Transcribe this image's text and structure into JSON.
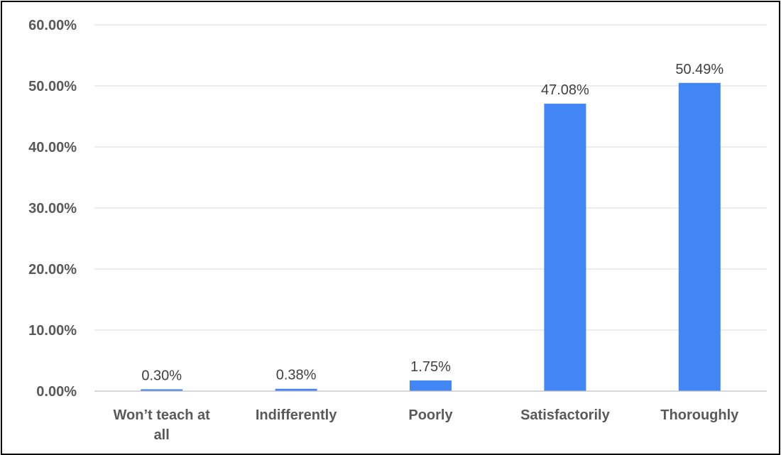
{
  "chart_data": {
    "type": "bar",
    "categories": [
      [
        "Won’t teach at",
        "all"
      ],
      [
        "Indifferently"
      ],
      [
        "Poorly"
      ],
      [
        "Satisfactorily"
      ],
      [
        "Thoroughly"
      ]
    ],
    "values": [
      0.3,
      0.38,
      1.75,
      47.08,
      50.49
    ],
    "data_labels": [
      "0.30%",
      "0.38%",
      "1.75%",
      "47.08%",
      "50.49%"
    ],
    "ylim": [
      0,
      60
    ],
    "yticks": [
      0,
      10,
      20,
      30,
      40,
      50,
      60
    ],
    "ytick_labels": [
      "0.00%",
      "10.00%",
      "20.00%",
      "30.00%",
      "40.00%",
      "50.00%",
      "60.00%"
    ],
    "bar_color": "#4285f4",
    "grid": true,
    "legend": "none",
    "title": "",
    "xlabel": "",
    "ylabel": ""
  }
}
